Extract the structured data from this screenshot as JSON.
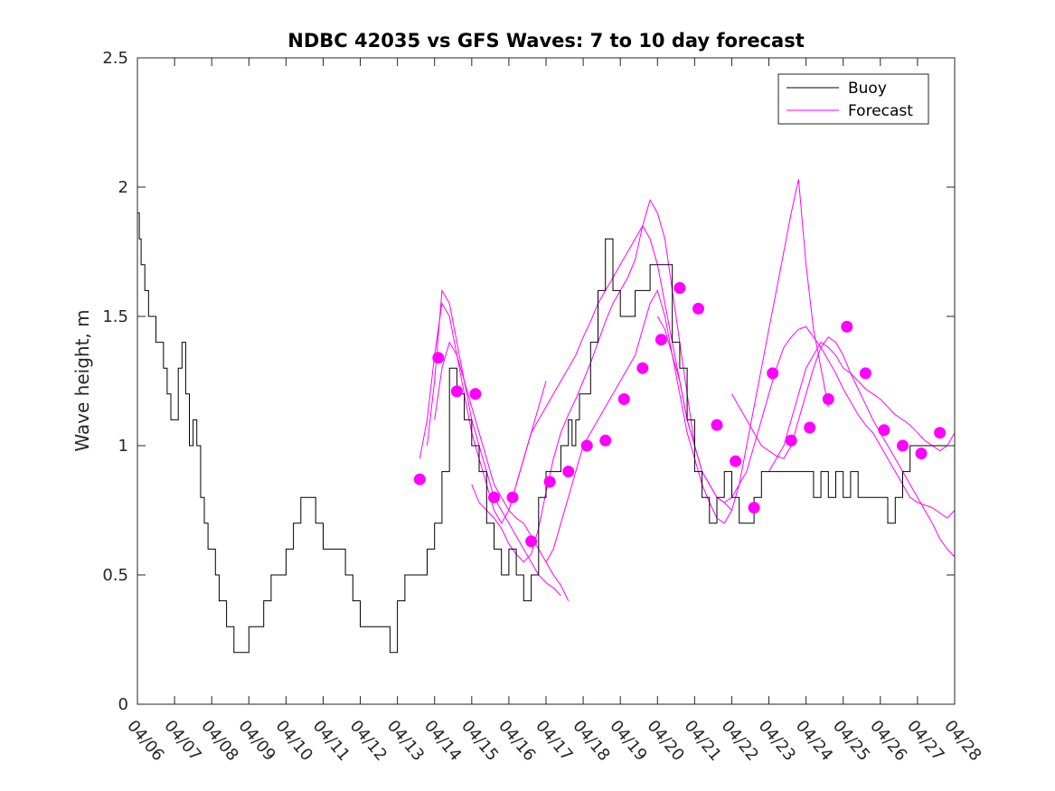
{
  "chart_data": {
    "type": "line",
    "title": "NDBC 42035 vs GFS Waves: 7 to 10 day forecast",
    "xlabel": "",
    "ylabel": "Wave height, m",
    "xlim": [
      "04/06",
      "04/28"
    ],
    "ylim": [
      0,
      2.5
    ],
    "x_ticks": [
      "04/06",
      "04/07",
      "04/08",
      "04/09",
      "04/10",
      "04/11",
      "04/12",
      "04/13",
      "04/14",
      "04/15",
      "04/16",
      "04/17",
      "04/18",
      "04/19",
      "04/20",
      "04/21",
      "04/22",
      "04/23",
      "04/24",
      "04/25",
      "04/26",
      "04/27",
      "04/28"
    ],
    "y_ticks": [
      "0",
      "0.5",
      "1",
      "1.5",
      "2",
      "2.5"
    ],
    "grid": false,
    "legend": {
      "placement": "top-right",
      "entries": [
        "Buoy",
        "Forecast"
      ]
    },
    "colors": {
      "buoy": "#000000",
      "forecast": "#ff00ff"
    },
    "series": [
      {
        "name": "Buoy",
        "style": "step-line",
        "x_day": [
          0,
          0.05,
          0.1,
          0.2,
          0.3,
          0.4,
          0.5,
          0.6,
          0.7,
          0.8,
          0.9,
          1.0,
          1.1,
          1.2,
          1.3,
          1.4,
          1.5,
          1.6,
          1.7,
          1.8,
          1.9,
          2.0,
          2.1,
          2.2,
          2.4,
          2.6,
          2.8,
          3.0,
          3.2,
          3.4,
          3.6,
          3.8,
          4.0,
          4.2,
          4.4,
          4.6,
          4.8,
          5.0,
          5.2,
          5.4,
          5.6,
          5.8,
          6.0,
          6.2,
          6.4,
          6.6,
          6.8,
          7.0,
          7.2,
          7.4,
          7.6,
          7.8,
          8.0,
          8.2,
          8.4,
          8.6,
          8.8,
          9.0,
          9.2,
          9.4,
          9.6,
          9.8,
          10.0,
          10.2,
          10.4,
          10.6,
          10.8,
          11.0,
          11.2,
          11.4,
          11.6,
          11.7,
          11.8,
          11.9,
          12.0,
          12.2,
          12.4,
          12.6,
          12.8,
          13.0,
          13.2,
          13.4,
          13.6,
          13.8,
          14.0,
          14.2,
          14.4,
          14.6,
          14.8,
          15.0,
          15.2,
          15.4,
          15.6,
          15.8,
          16.0,
          16.2,
          16.4,
          16.6,
          16.8,
          17.0,
          17.2,
          17.4,
          17.6,
          17.8,
          18.0,
          18.2,
          18.4,
          18.6,
          18.8,
          19.0,
          19.2,
          19.4,
          19.6,
          19.8,
          20.0,
          20.2,
          20.4,
          20.6,
          20.8,
          21.0,
          21.2,
          21.4,
          21.6,
          21.8,
          22.0
        ],
        "values": [
          1.9,
          1.8,
          1.7,
          1.6,
          1.5,
          1.5,
          1.4,
          1.4,
          1.3,
          1.2,
          1.1,
          1.1,
          1.3,
          1.4,
          1.2,
          1.0,
          1.1,
          1.0,
          0.8,
          0.7,
          0.6,
          0.6,
          0.5,
          0.4,
          0.3,
          0.2,
          0.2,
          0.3,
          0.3,
          0.4,
          0.5,
          0.5,
          0.6,
          0.7,
          0.8,
          0.8,
          0.7,
          0.6,
          0.6,
          0.6,
          0.5,
          0.4,
          0.3,
          0.3,
          0.3,
          0.3,
          0.2,
          0.4,
          0.5,
          0.5,
          0.5,
          0.6,
          0.7,
          0.9,
          1.3,
          1.2,
          1.1,
          1.0,
          0.9,
          0.7,
          0.6,
          0.5,
          0.6,
          0.5,
          0.4,
          0.5,
          0.8,
          0.9,
          0.9,
          1.0,
          1.1,
          1.0,
          1.1,
          1.2,
          1.2,
          1.4,
          1.6,
          1.8,
          1.6,
          1.5,
          1.5,
          1.6,
          1.6,
          1.7,
          1.7,
          1.7,
          1.4,
          1.3,
          1.1,
          0.9,
          0.8,
          0.7,
          0.8,
          0.9,
          0.8,
          0.7,
          0.7,
          0.8,
          0.9,
          0.9,
          0.9,
          0.9,
          0.9,
          0.9,
          0.9,
          0.8,
          0.9,
          0.8,
          0.9,
          0.8,
          0.9,
          0.8,
          0.8,
          0.8,
          0.8,
          0.7,
          0.8,
          0.9,
          1.0,
          1.0,
          1.0,
          1.0,
          1.0,
          1.0,
          1.0
        ]
      },
      {
        "name": "Forecast",
        "style": "lines",
        "tracks": [
          {
            "x_day": [
              7.6,
              7.8,
              8.0,
              8.2,
              8.4,
              8.6,
              8.8,
              9.0,
              9.2,
              9.4,
              9.6,
              9.8,
              10.0,
              10.2,
              10.4,
              10.6,
              10.8,
              11.0
            ],
            "values": [
              0.95,
              1.1,
              1.35,
              1.55,
              1.5,
              1.35,
              1.2,
              1.05,
              0.95,
              0.85,
              0.75,
              0.7,
              0.75,
              0.85,
              0.95,
              1.05,
              1.15,
              1.25
            ]
          },
          {
            "x_day": [
              7.8,
              8.0,
              8.2,
              8.4,
              8.6,
              8.8,
              9.0,
              9.2,
              9.4,
              9.6,
              9.8,
              10.0,
              10.2,
              10.4,
              10.6,
              10.8,
              11.0,
              11.2,
              11.4
            ],
            "values": [
              1.0,
              1.25,
              1.6,
              1.55,
              1.4,
              1.25,
              1.1,
              1.0,
              0.9,
              0.8,
              0.75,
              0.7,
              0.65,
              0.6,
              0.55,
              0.5,
              0.47,
              0.45,
              0.42
            ]
          },
          {
            "x_day": [
              8.0,
              8.2,
              8.4,
              8.6,
              8.8,
              9.0,
              9.2,
              9.4,
              9.6,
              9.8,
              10.0,
              10.2,
              10.4,
              10.6,
              10.8,
              11.0,
              11.2,
              11.4,
              11.6
            ],
            "values": [
              1.1,
              1.3,
              1.4,
              1.35,
              1.25,
              1.15,
              1.05,
              0.95,
              0.85,
              0.8,
              0.75,
              0.72,
              0.7,
              0.65,
              0.6,
              0.55,
              0.5,
              0.46,
              0.4
            ]
          },
          {
            "x_day": [
              9.0,
              9.2,
              9.4,
              9.6,
              9.8,
              10.0,
              10.2,
              10.4,
              10.6,
              10.8,
              11.0,
              11.2,
              11.4,
              11.6,
              11.8,
              12.0,
              12.2,
              12.4,
              12.6,
              12.8,
              13.0,
              13.2,
              13.4,
              13.6,
              13.8,
              14.0,
              14.2,
              14.4,
              14.6,
              14.8,
              15.0
            ],
            "values": [
              0.85,
              0.78,
              0.75,
              0.72,
              0.68,
              0.62,
              0.58,
              0.55,
              0.58,
              0.68,
              0.82,
              0.95,
              1.05,
              1.12,
              1.18,
              1.25,
              1.32,
              1.4,
              1.48,
              1.55,
              1.6,
              1.65,
              1.72,
              1.85,
              1.95,
              1.9,
              1.8,
              1.6,
              1.4,
              1.2,
              1.0
            ]
          },
          {
            "x_day": [
              10.0,
              10.2,
              10.4,
              10.6,
              10.8,
              11.0,
              11.2,
              11.4,
              11.6,
              11.8,
              12.0,
              12.2,
              12.4,
              12.6,
              12.8,
              13.0,
              13.2,
              13.4,
              13.6,
              13.8,
              14.0,
              14.2,
              14.4,
              14.6,
              14.8,
              15.0,
              15.2,
              15.4,
              15.6,
              15.8,
              16.0
            ],
            "values": [
              0.75,
              0.85,
              0.95,
              1.05,
              1.1,
              1.15,
              1.2,
              1.25,
              1.3,
              1.35,
              1.42,
              1.48,
              1.55,
              1.6,
              1.65,
              1.7,
              1.75,
              1.8,
              1.85,
              1.8,
              1.7,
              1.55,
              1.4,
              1.25,
              1.1,
              1.0,
              0.9,
              0.85,
              0.8,
              0.78,
              0.75
            ]
          },
          {
            "x_day": [
              11.0,
              11.2,
              11.4,
              11.6,
              11.8,
              12.0,
              12.2,
              12.4,
              12.6,
              12.8,
              13.0,
              13.2,
              13.4,
              13.6,
              13.8,
              14.0,
              14.2,
              14.4,
              14.6,
              14.8,
              15.0,
              15.2,
              15.4,
              15.6,
              15.8,
              16.0,
              16.2,
              16.4,
              16.6,
              16.8,
              17.0,
              17.2,
              17.4,
              17.6,
              17.8,
              18.0,
              18.2,
              18.4,
              18.6
            ],
            "values": [
              0.55,
              0.6,
              0.7,
              0.8,
              0.9,
              1.0,
              1.05,
              1.1,
              1.15,
              1.2,
              1.25,
              1.3,
              1.35,
              1.45,
              1.55,
              1.6,
              1.5,
              1.35,
              1.2,
              1.05,
              0.95,
              0.85,
              0.78,
              0.72,
              0.7,
              0.75,
              0.85,
              1.0,
              1.15,
              1.3,
              1.45,
              1.6,
              1.75,
              1.9,
              2.03,
              1.7,
              1.45,
              1.3,
              1.15
            ]
          },
          {
            "x_day": [
              14.0,
              14.2,
              14.4,
              14.6,
              14.8,
              15.0,
              15.2,
              15.4,
              15.6,
              15.8,
              16.0,
              16.2,
              16.4,
              16.6,
              16.8,
              17.0,
              17.2,
              17.4,
              17.6,
              17.8,
              18.0,
              18.2,
              18.4,
              18.6,
              18.8,
              19.0,
              19.2,
              19.4,
              19.6,
              19.8,
              20.0,
              20.2,
              20.4,
              20.6,
              20.8,
              21.0,
              21.2,
              21.4,
              21.6,
              21.8,
              22.0
            ],
            "values": [
              1.5,
              1.45,
              1.35,
              1.25,
              1.1,
              1.0,
              0.9,
              0.85,
              0.8,
              0.78,
              0.8,
              0.85,
              0.9,
              1.0,
              1.1,
              1.2,
              1.3,
              1.38,
              1.42,
              1.45,
              1.46,
              1.42,
              1.38,
              1.33,
              1.28,
              1.22,
              1.17,
              1.12,
              1.08,
              1.05,
              1.0,
              0.95,
              0.9,
              0.85,
              0.8,
              0.78,
              0.77,
              0.76,
              0.74,
              0.72,
              0.75
            ]
          },
          {
            "x_day": [
              16.0,
              16.2,
              16.4,
              16.6,
              16.8,
              17.0,
              17.2,
              17.4,
              17.6,
              17.8,
              18.0,
              18.2,
              18.4,
              18.6,
              18.8,
              19.0,
              19.2,
              19.4,
              19.6,
              19.8,
              20.0,
              20.2,
              20.4,
              20.6,
              20.8,
              21.0,
              21.2,
              21.4,
              21.6,
              21.8,
              22.0
            ],
            "values": [
              1.2,
              1.15,
              1.1,
              1.05,
              1.0,
              0.98,
              0.96,
              0.95,
              1.0,
              1.1,
              1.2,
              1.3,
              1.38,
              1.42,
              1.4,
              1.35,
              1.28,
              1.22,
              1.16,
              1.1,
              1.05,
              1.0,
              0.95,
              0.9,
              0.85,
              0.8,
              0.75,
              0.7,
              0.64,
              0.6,
              0.57
            ]
          },
          {
            "x_day": [
              17.0,
              17.2,
              17.4,
              17.6,
              17.8,
              18.0,
              18.2,
              18.4,
              18.6,
              18.8,
              19.0,
              19.2,
              19.4,
              19.6,
              19.8,
              20.0,
              20.2,
              20.4,
              20.6,
              20.8,
              21.0,
              21.2,
              21.4,
              21.6,
              21.8,
              22.0
            ],
            "values": [
              0.9,
              0.95,
              1.0,
              1.1,
              1.2,
              1.3,
              1.35,
              1.4,
              1.38,
              1.35,
              1.3,
              1.28,
              1.25,
              1.22,
              1.2,
              1.18,
              1.15,
              1.12,
              1.1,
              1.08,
              1.05,
              1.02,
              1.0,
              0.98,
              1.0,
              1.05
            ]
          }
        ]
      },
      {
        "name": "Forecast",
        "style": "markers",
        "x_day": [
          7.6,
          8.1,
          8.6,
          9.1,
          9.6,
          10.1,
          10.6,
          11.1,
          11.6,
          12.1,
          12.6,
          13.1,
          13.6,
          14.1,
          14.6,
          15.1,
          15.6,
          16.1,
          16.6,
          17.1,
          17.6,
          18.1,
          18.6,
          19.1,
          19.6,
          20.1,
          20.6,
          21.1,
          21.6
        ],
        "values": [
          0.87,
          1.34,
          1.21,
          1.2,
          0.8,
          0.8,
          0.63,
          0.86,
          0.9,
          1.0,
          1.02,
          1.18,
          1.3,
          1.41,
          1.61,
          1.53,
          1.08,
          0.94,
          0.76,
          1.28,
          1.02,
          1.07,
          1.18,
          1.46,
          1.28,
          1.06,
          1.0,
          0.97,
          1.05
        ]
      }
    ]
  }
}
